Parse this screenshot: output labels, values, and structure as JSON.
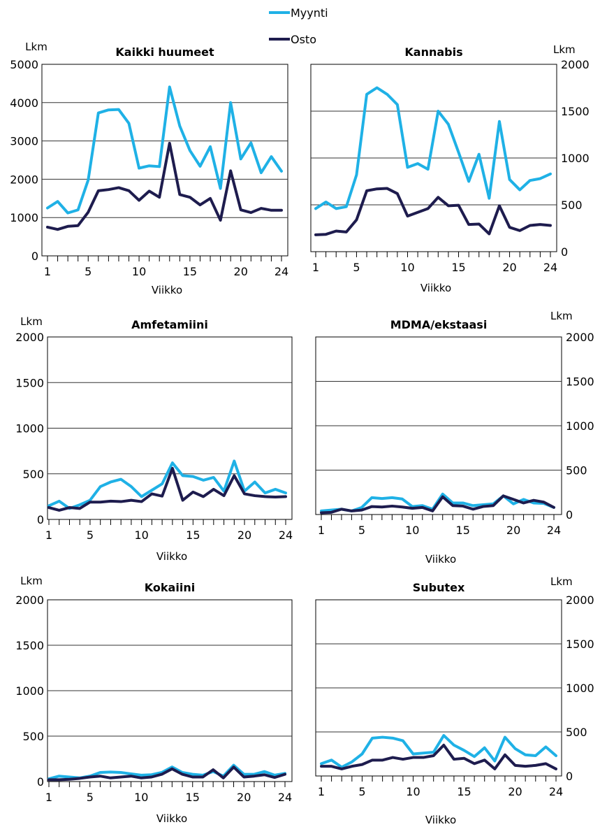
{
  "legend": {
    "myynti_label": "Myynti",
    "osto_label": "Osto"
  },
  "colors": {
    "myynti": "#1fb1e6",
    "osto": "#1e1c4e",
    "grid": "#333333",
    "frame": "#000000"
  },
  "chart_data": [
    {
      "type": "line",
      "title": "Kaikki huumeet",
      "ylabel": "Lkm",
      "xlabel": "Viikko",
      "ylim": [
        0,
        5000
      ],
      "yticks": [
        0,
        1000,
        2000,
        3000,
        4000,
        5000
      ],
      "xtick_labels": [
        "1",
        "5",
        "10",
        "15",
        "20",
        "24"
      ],
      "grid": true,
      "x": [
        1,
        2,
        3,
        4,
        5,
        6,
        7,
        8,
        9,
        10,
        11,
        12,
        13,
        14,
        15,
        16,
        17,
        18,
        19,
        20,
        21,
        22,
        23,
        24
      ],
      "series": [
        {
          "name": "Myynti",
          "values": [
            1250,
            1420,
            1120,
            1200,
            1980,
            3730,
            3810,
            3820,
            3460,
            2290,
            2350,
            2330,
            4410,
            3390,
            2750,
            2340,
            2850,
            1760,
            4000,
            2530,
            2950,
            2170,
            2590,
            2210
          ]
        },
        {
          "name": "Osto",
          "values": [
            750,
            690,
            770,
            790,
            1140,
            1700,
            1730,
            1780,
            1700,
            1450,
            1690,
            1530,
            2940,
            1600,
            1530,
            1330,
            1500,
            930,
            2220,
            1200,
            1130,
            1240,
            1190,
            1190
          ]
        }
      ]
    },
    {
      "type": "line",
      "title": "Kannabis",
      "ylabel": "Lkm",
      "xlabel": "Viikko",
      "ylim": [
        0,
        2000
      ],
      "yticks": [
        0,
        500,
        1000,
        1500,
        2000
      ],
      "xtick_labels": [
        "1",
        "5",
        "10",
        "15",
        "20",
        "24"
      ],
      "grid": true,
      "x": [
        1,
        2,
        3,
        4,
        5,
        6,
        7,
        8,
        9,
        10,
        11,
        12,
        13,
        14,
        15,
        16,
        17,
        18,
        19,
        20,
        21,
        22,
        23,
        24
      ],
      "series": [
        {
          "name": "Myynti",
          "values": [
            460,
            530,
            460,
            480,
            820,
            1680,
            1750,
            1680,
            1570,
            900,
            940,
            880,
            1500,
            1360,
            1060,
            750,
            1040,
            570,
            1390,
            770,
            660,
            760,
            780,
            830
          ]
        },
        {
          "name": "Osto",
          "values": [
            180,
            185,
            220,
            210,
            340,
            650,
            670,
            675,
            620,
            380,
            420,
            460,
            580,
            490,
            495,
            290,
            295,
            190,
            490,
            260,
            225,
            280,
            290,
            280
          ]
        }
      ]
    },
    {
      "type": "line",
      "title": "Amfetamiini",
      "ylabel": "Lkm",
      "xlabel": "Viikko",
      "ylim": [
        0,
        2000
      ],
      "yticks": [
        0,
        500,
        1000,
        1500,
        2000
      ],
      "xtick_labels": [
        "1",
        "5",
        "10",
        "15",
        "20",
        "24"
      ],
      "grid": true,
      "x": [
        1,
        2,
        3,
        4,
        5,
        6,
        7,
        8,
        9,
        10,
        11,
        12,
        13,
        14,
        15,
        16,
        17,
        18,
        19,
        20,
        21,
        22,
        23,
        24
      ],
      "series": [
        {
          "name": "Myynti",
          "values": [
            150,
            200,
            120,
            160,
            210,
            360,
            410,
            440,
            360,
            250,
            320,
            390,
            620,
            480,
            470,
            430,
            460,
            310,
            640,
            310,
            410,
            290,
            330,
            290
          ]
        },
        {
          "name": "Osto",
          "values": [
            130,
            100,
            130,
            120,
            190,
            190,
            200,
            195,
            210,
            195,
            280,
            255,
            560,
            210,
            300,
            250,
            330,
            260,
            480,
            280,
            260,
            250,
            245,
            250
          ]
        }
      ]
    },
    {
      "type": "line",
      "title": "MDMA/ekstaasi",
      "ylabel": "Lkm",
      "xlabel": "Viikko",
      "ylim": [
        0,
        2000
      ],
      "yticks": [
        0,
        500,
        1000,
        1500,
        2000
      ],
      "xtick_labels": [
        "1",
        "5",
        "10",
        "15",
        "20",
        "24"
      ],
      "grid": true,
      "x": [
        1,
        2,
        3,
        4,
        5,
        6,
        7,
        8,
        9,
        10,
        11,
        12,
        13,
        14,
        15,
        16,
        17,
        18,
        19,
        20,
        21,
        22,
        23,
        24
      ],
      "series": [
        {
          "name": "Myynti",
          "values": [
            40,
            50,
            60,
            40,
            80,
            190,
            180,
            190,
            175,
            90,
            100,
            60,
            230,
            130,
            130,
            100,
            110,
            120,
            210,
            120,
            170,
            130,
            125,
            80
          ]
        },
        {
          "name": "Osto",
          "values": [
            20,
            25,
            60,
            40,
            50,
            90,
            85,
            95,
            85,
            70,
            80,
            40,
            200,
            100,
            95,
            60,
            90,
            100,
            210,
            170,
            130,
            160,
            140,
            80
          ]
        }
      ]
    },
    {
      "type": "line",
      "title": "Kokaiini",
      "ylabel": "Lkm",
      "xlabel": "Viikko",
      "ylim": [
        0,
        2000
      ],
      "yticks": [
        0,
        500,
        1000,
        1500,
        2000
      ],
      "xtick_labels": [
        "1",
        "5",
        "10",
        "15",
        "20",
        "24"
      ],
      "grid": true,
      "x": [
        1,
        2,
        3,
        4,
        5,
        6,
        7,
        8,
        9,
        10,
        11,
        12,
        13,
        14,
        15,
        16,
        17,
        18,
        19,
        20,
        21,
        22,
        23,
        24
      ],
      "series": [
        {
          "name": "Myynti",
          "values": [
            30,
            60,
            50,
            40,
            60,
            100,
            105,
            100,
            85,
            70,
            75,
            100,
            160,
            100,
            80,
            70,
            110,
            60,
            180,
            80,
            80,
            110,
            70,
            90
          ]
        },
        {
          "name": "Osto",
          "values": [
            20,
            20,
            25,
            35,
            50,
            60,
            40,
            50,
            60,
            40,
            50,
            80,
            140,
            80,
            50,
            50,
            130,
            40,
            160,
            50,
            60,
            75,
            45,
            80
          ]
        }
      ]
    },
    {
      "type": "line",
      "title": "Subutex",
      "ylabel": "Lkm",
      "xlabel": "Viikko",
      "ylim": [
        0,
        2000
      ],
      "yticks": [
        0,
        500,
        1000,
        1500,
        2000
      ],
      "xtick_labels": [
        "1",
        "5",
        "10",
        "15",
        "20",
        "24"
      ],
      "grid": true,
      "x": [
        1,
        2,
        3,
        4,
        5,
        6,
        7,
        8,
        9,
        10,
        11,
        12,
        13,
        14,
        15,
        16,
        17,
        18,
        19,
        20,
        21,
        22,
        23,
        24
      ],
      "series": [
        {
          "name": "Myynti",
          "values": [
            140,
            180,
            100,
            160,
            250,
            430,
            440,
            430,
            400,
            250,
            260,
            270,
            460,
            350,
            290,
            220,
            320,
            170,
            440,
            310,
            240,
            230,
            330,
            230
          ]
        },
        {
          "name": "Osto",
          "values": [
            110,
            110,
            80,
            110,
            130,
            180,
            180,
            210,
            190,
            210,
            210,
            230,
            350,
            190,
            200,
            140,
            180,
            80,
            240,
            120,
            110,
            120,
            140,
            80
          ]
        }
      ]
    }
  ]
}
